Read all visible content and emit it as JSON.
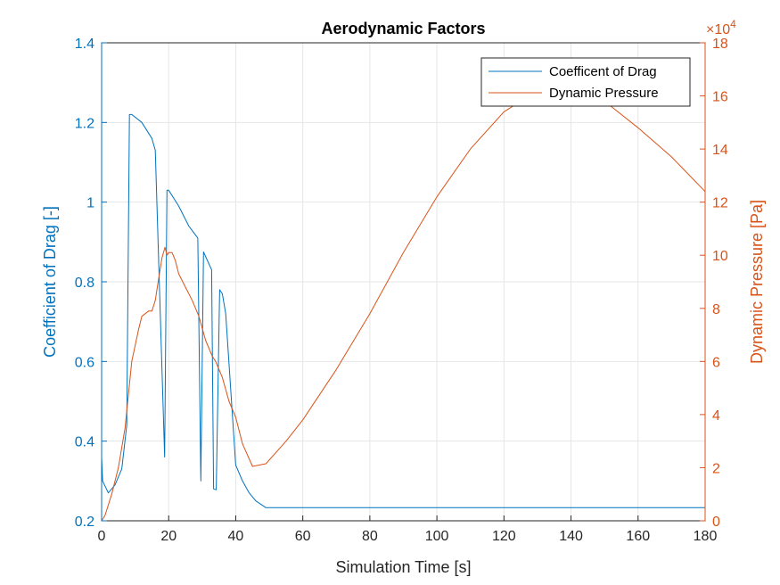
{
  "chart_data": {
    "type": "line",
    "title": "Aerodynamic Factors",
    "xlabel": "Simulation Time [s]",
    "ylabel_left": "Coefficient of Drag [-]",
    "ylabel_right": "Dynamic Pressure [Pa]",
    "right_exponent_base": "×10",
    "right_exponent_power": "4",
    "xlim": [
      0,
      180
    ],
    "ylim_left": [
      0.2,
      1.4
    ],
    "ylim_right": [
      0,
      180000
    ],
    "xticks": [
      "0",
      "20",
      "40",
      "60",
      "80",
      "100",
      "120",
      "140",
      "160",
      "180"
    ],
    "yticks_left": [
      "0.2",
      "0.4",
      "0.6",
      "0.8",
      "1",
      "1.2",
      "1.4"
    ],
    "yticks_right": [
      "0",
      "2",
      "4",
      "6",
      "8",
      "10",
      "12",
      "14",
      "16",
      "18"
    ],
    "grid": true,
    "legend_position": "top-right",
    "colors": {
      "drag": "#0072BD",
      "pressure": "#D95319",
      "grid": "#e6e6e6",
      "axis": "#262626"
    },
    "series": [
      {
        "name": "Coefficent of Drag",
        "axis": "left",
        "x": [
          0,
          0.3,
          2,
          4,
          6,
          7.5,
          8.3,
          9,
          12,
          15,
          16,
          18.8,
          19.5,
          20,
          23,
          26,
          28.7,
          29.6,
          30.4,
          32.8,
          33.4,
          34.2,
          35.2,
          36,
          37,
          40,
          42,
          44,
          46,
          49,
          60,
          80,
          100,
          120,
          140,
          160,
          180
        ],
        "y": [
          0.36,
          0.3,
          0.27,
          0.29,
          0.33,
          0.44,
          1.22,
          1.22,
          1.2,
          1.16,
          1.13,
          0.36,
          1.03,
          1.03,
          0.99,
          0.94,
          0.91,
          0.3,
          0.875,
          0.83,
          0.28,
          0.278,
          0.78,
          0.77,
          0.72,
          0.34,
          0.3,
          0.27,
          0.25,
          0.233,
          0.233,
          0.233,
          0.233,
          0.233,
          0.233,
          0.233,
          0.233
        ]
      },
      {
        "name": "Dynamic Pressure",
        "axis": "right",
        "x": [
          0,
          1,
          3,
          5,
          7,
          9,
          11,
          12,
          14,
          15,
          16,
          17,
          18,
          18.9,
          19.5,
          20,
          21,
          22,
          23,
          25,
          27,
          29,
          31,
          33,
          34,
          36,
          38,
          40,
          42,
          45,
          49,
          55,
          60,
          70,
          80,
          90,
          100,
          110,
          120,
          130,
          140,
          150,
          160,
          170,
          180
        ],
        "y": [
          0,
          2000,
          10000,
          20000,
          35000,
          60000,
          72000,
          77000,
          79000,
          79000,
          83000,
          91000,
          99000,
          103000,
          100000,
          101000,
          101000,
          98000,
          93000,
          88000,
          83000,
          77000,
          68000,
          62000,
          60000,
          54000,
          45000,
          39000,
          29000,
          20500,
          21500,
          30000,
          38000,
          57000,
          78000,
          101000,
          122000,
          140000,
          154000,
          162000,
          163000,
          158000,
          148000,
          137000,
          124000
        ]
      }
    ]
  }
}
